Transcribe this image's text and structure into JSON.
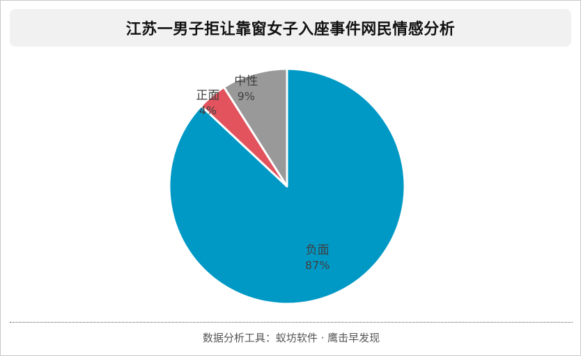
{
  "title": "江苏一男子拒让靠窗女子入座事件网民情感分析",
  "footer": "数据分析工具：蚁坊软件 · 鹰击早发现",
  "chart_data": {
    "type": "pie",
    "title": "江苏一男子拒让靠窗女子入座事件网民情感分析",
    "slices": [
      {
        "label": "负面",
        "value": 87,
        "display": "87%",
        "color": "#0099c6"
      },
      {
        "label": "正面",
        "value": 4,
        "display": "4%",
        "color": "#e2535d"
      },
      {
        "label": "中性",
        "value": 9,
        "display": "9%",
        "color": "#999999"
      }
    ],
    "start_angle_deg": 0,
    "direction": "clockwise",
    "legend": "none"
  }
}
